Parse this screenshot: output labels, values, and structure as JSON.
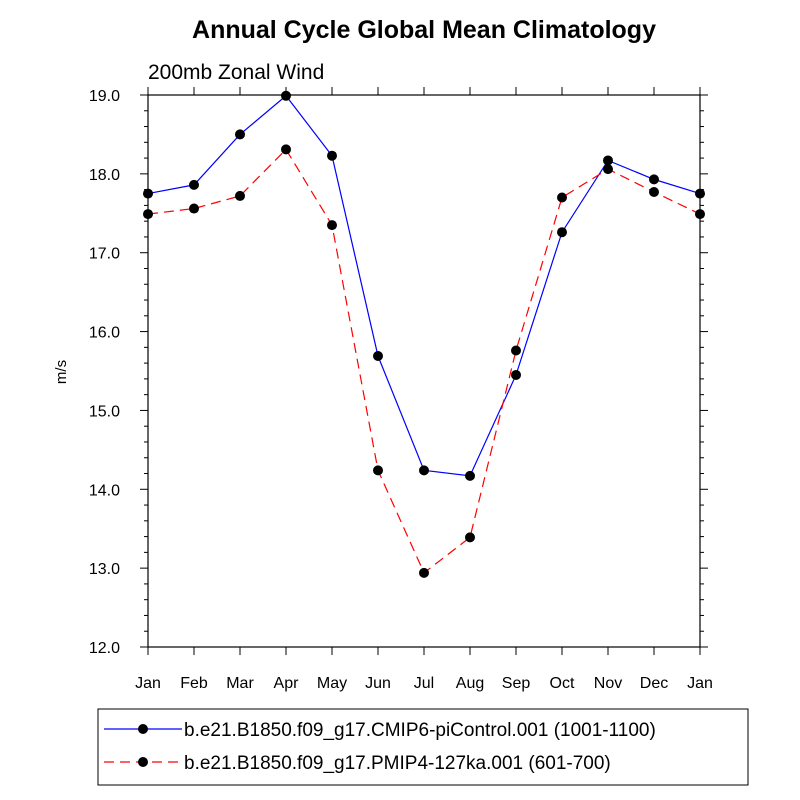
{
  "chart_data": {
    "type": "line",
    "title": "Annual Cycle Global Mean Climatology",
    "subtitle": "200mb Zonal Wind",
    "ylabel": "m/s",
    "xlabel": "",
    "categories": [
      "Jan",
      "Feb",
      "Mar",
      "Apr",
      "May",
      "Jun",
      "Jul",
      "Aug",
      "Sep",
      "Oct",
      "Nov",
      "Dec",
      "Jan"
    ],
    "ylim": [
      12.0,
      19.0
    ],
    "yticks": [
      "12.0",
      "13.0",
      "14.0",
      "15.0",
      "16.0",
      "17.0",
      "18.0",
      "19.0"
    ],
    "grid": false,
    "legend_position": "bottom",
    "series": [
      {
        "name": "b.e21.B1850.f09_g17.CMIP6-piControl.001 (1001-1100)",
        "color": "#0000ff",
        "dash": "solid",
        "values": [
          17.75,
          17.86,
          18.5,
          18.99,
          18.23,
          15.69,
          14.24,
          14.17,
          15.45,
          17.26,
          18.17,
          17.93,
          17.75
        ]
      },
      {
        "name": "b.e21.B1850.f09_g17.PMIP4-127ka.001 (601-700)",
        "color": "#ff0000",
        "dash": "dashed",
        "values": [
          17.49,
          17.56,
          17.72,
          18.31,
          17.35,
          14.24,
          12.94,
          13.39,
          15.76,
          17.7,
          18.06,
          17.77,
          17.49
        ]
      }
    ]
  }
}
